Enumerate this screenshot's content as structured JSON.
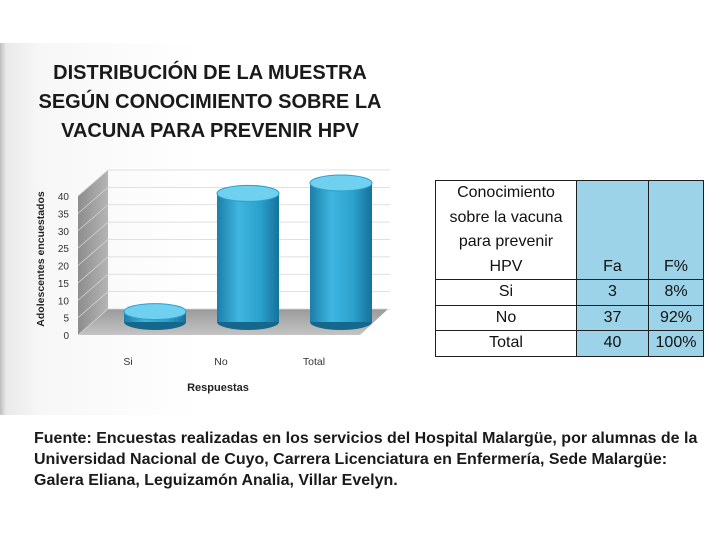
{
  "chart_data": {
    "type": "bar",
    "title_lines": [
      "DISTRIBUCIÓN DE LA MUESTRA",
      "SEGÚN CONOCIMIENTO SOBRE LA",
      "VACUNA PARA PREVENIR HPV"
    ],
    "categories": [
      "Si",
      "No",
      "Total"
    ],
    "values": [
      3,
      37,
      40
    ],
    "xlabel": "Respuestas",
    "ylabel": "Adolescentes encuestados",
    "ylim": [
      0,
      40
    ],
    "yticks": [
      0,
      5,
      10,
      15,
      20,
      25,
      30,
      35,
      40
    ],
    "bar_color": "#2a9fcc"
  },
  "table": {
    "headers": {
      "label": [
        "Conocimiento",
        "sobre la vacuna",
        "para prevenir",
        "HPV"
      ],
      "fa": "Fa",
      "fp": "F%"
    },
    "rows": [
      {
        "label": "Si",
        "fa": "3",
        "fp": "8%"
      },
      {
        "label": "No",
        "fa": "37",
        "fp": "92%"
      },
      {
        "label": "Total",
        "fa": "40",
        "fp": "100%"
      }
    ]
  },
  "footnote": {
    "bullet": "",
    "text": "Fuente: Encuestas realizadas en los servicios del Hospital Malargüe, por alumnas de la Universidad Nacional de Cuyo, Carrera  Licenciatura  en Enfermería, Sede Malargüe: Galera Eliana, Leguizamón Analia, Villar Evelyn."
  }
}
